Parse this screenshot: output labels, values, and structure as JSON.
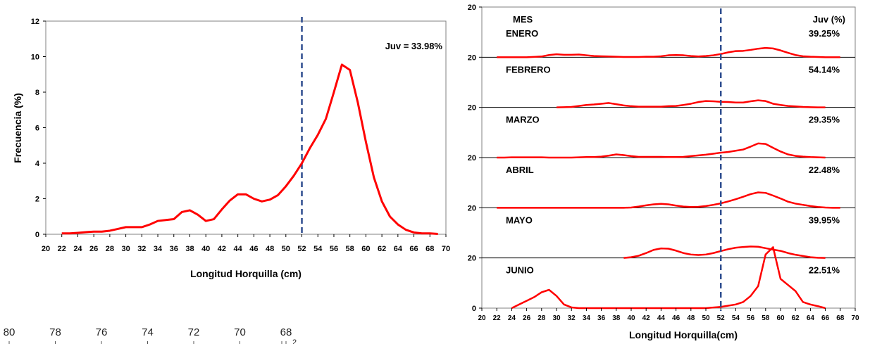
{
  "colors": {
    "curve": "#ff0000",
    "marker": "#2e4d8f",
    "axis": "#000000"
  },
  "left_chart": {
    "chart_data": {
      "type": "line",
      "ylabel": "Frecuencia (%)",
      "xlabel": "Longitud Horquilla (cm)",
      "annotation": "Juv = 33.98%",
      "marker_x": 52,
      "xlim": [
        20,
        70
      ],
      "ylim": [
        0,
        12
      ],
      "x_ticks": [
        20,
        22,
        24,
        26,
        28,
        30,
        32,
        34,
        36,
        38,
        40,
        42,
        44,
        46,
        48,
        50,
        52,
        54,
        56,
        58,
        60,
        62,
        64,
        66,
        68,
        70
      ],
      "y_ticks": [
        0,
        2,
        4,
        6,
        8,
        10,
        12
      ],
      "series": [
        {
          "x": [
            22,
            23,
            24,
            25,
            26,
            27,
            28,
            29,
            30,
            31,
            32,
            33,
            34,
            35,
            36,
            37,
            38,
            39,
            40,
            41,
            42,
            43,
            44,
            45,
            46,
            47,
            48,
            49,
            50,
            51,
            52,
            53,
            54,
            55,
            56,
            57,
            58,
            59,
            60,
            61,
            62,
            63,
            64,
            65,
            66,
            67,
            68,
            69
          ],
          "values": [
            0.05,
            0.05,
            0.08,
            0.12,
            0.15,
            0.15,
            0.2,
            0.3,
            0.4,
            0.4,
            0.4,
            0.55,
            0.75,
            0.8,
            0.85,
            1.25,
            1.35,
            1.1,
            0.75,
            0.85,
            1.4,
            1.9,
            2.25,
            2.25,
            2.0,
            1.85,
            1.95,
            2.2,
            2.7,
            3.3,
            4.0,
            4.85,
            5.6,
            6.5,
            8.0,
            9.55,
            9.25,
            7.4,
            5.2,
            3.2,
            1.85,
            1.0,
            0.55,
            0.25,
            0.1,
            0.05,
            0.05,
            0.02
          ]
        }
      ]
    }
  },
  "right_chart": {
    "chart_data": {
      "type": "line",
      "xlabel": "Longitud Horquilla(cm)",
      "header_left": "MES",
      "header_right": "Juv (%)",
      "marker_x": 52,
      "xlim": [
        20,
        70
      ],
      "ylim": [
        0,
        20
      ],
      "y_tick_labels": [
        "20",
        "20",
        "20",
        "20",
        "20",
        "20",
        "0"
      ],
      "x_ticks": [
        20,
        22,
        24,
        26,
        28,
        30,
        32,
        34,
        36,
        38,
        40,
        42,
        44,
        46,
        48,
        50,
        52,
        54,
        56,
        58,
        60,
        62,
        64,
        66,
        68,
        70
      ],
      "series": [
        {
          "name": "ENERO",
          "juv": "39.25%",
          "x": [
            22,
            24,
            26,
            28,
            29,
            30,
            31,
            32,
            33,
            34,
            35,
            36,
            37,
            38,
            39,
            40,
            41,
            42,
            43,
            44,
            45,
            46,
            47,
            48,
            49,
            50,
            51,
            52,
            53,
            54,
            55,
            56,
            57,
            58,
            59,
            60,
            61,
            62,
            63,
            64,
            65,
            66,
            67,
            68
          ],
          "y": [
            0,
            0,
            0,
            0.3,
            0.9,
            1.2,
            1.0,
            1.0,
            1.1,
            0.8,
            0.5,
            0.4,
            0.3,
            0.2,
            0.1,
            0.1,
            0.1,
            0.2,
            0.2,
            0.4,
            0.8,
            0.9,
            0.8,
            0.5,
            0.3,
            0.5,
            0.8,
            1.3,
            2.0,
            2.5,
            2.6,
            3.0,
            3.5,
            3.8,
            3.6,
            2.8,
            1.8,
            0.9,
            0.4,
            0.2,
            0.1,
            0,
            0,
            0
          ]
        },
        {
          "name": "FEBRERO",
          "juv": "54.14%",
          "x": [
            30,
            31,
            32,
            33,
            34,
            35,
            36,
            37,
            38,
            39,
            40,
            41,
            42,
            43,
            44,
            45,
            46,
            47,
            48,
            49,
            50,
            51,
            52,
            53,
            54,
            55,
            56,
            57,
            58,
            59,
            60,
            61,
            62,
            63,
            64,
            65,
            66
          ],
          "y": [
            0,
            0.1,
            0.2,
            0.6,
            1.0,
            1.2,
            1.5,
            1.8,
            1.3,
            0.8,
            0.5,
            0.3,
            0.3,
            0.3,
            0.3,
            0.5,
            0.6,
            1.0,
            1.5,
            2.2,
            2.6,
            2.5,
            2.3,
            2.2,
            2.0,
            2.0,
            2.5,
            2.9,
            2.6,
            1.5,
            1.0,
            0.6,
            0.4,
            0.2,
            0.1,
            0,
            0
          ]
        },
        {
          "name": "MARZO",
          "juv": "29.35%",
          "x": [
            22,
            23,
            24,
            25,
            26,
            27,
            28,
            29,
            30,
            31,
            32,
            33,
            34,
            35,
            36,
            37,
            38,
            39,
            40,
            41,
            42,
            43,
            44,
            45,
            46,
            47,
            48,
            49,
            50,
            51,
            52,
            53,
            54,
            55,
            56,
            57,
            58,
            59,
            60,
            61,
            62,
            63,
            64,
            65,
            66
          ],
          "y": [
            0,
            0,
            0.1,
            0.1,
            0.1,
            0.1,
            0.1,
            0,
            0,
            0,
            0,
            0.1,
            0.2,
            0.2,
            0.4,
            0.8,
            1.3,
            1.0,
            0.6,
            0.3,
            0.3,
            0.3,
            0.3,
            0.2,
            0.2,
            0.3,
            0.6,
            0.9,
            1.2,
            1.6,
            2.0,
            2.3,
            2.8,
            3.3,
            4.5,
            5.8,
            5.6,
            4.0,
            2.5,
            1.3,
            0.7,
            0.4,
            0.2,
            0.1,
            0
          ]
        },
        {
          "name": "ABRIL",
          "juv": "22.48%",
          "x": [
            22,
            30,
            38,
            39,
            40,
            41,
            42,
            43,
            44,
            45,
            46,
            47,
            48,
            49,
            50,
            51,
            52,
            53,
            54,
            55,
            56,
            57,
            58,
            59,
            60,
            61,
            62,
            63,
            64,
            65,
            66,
            67,
            68
          ],
          "y": [
            0,
            0,
            0,
            0,
            0.1,
            0.5,
            1.0,
            1.4,
            1.6,
            1.4,
            0.9,
            0.5,
            0.3,
            0.4,
            0.7,
            1.2,
            1.8,
            2.6,
            3.5,
            4.5,
            5.6,
            6.3,
            6.1,
            5.0,
            3.8,
            2.5,
            1.7,
            1.2,
            0.7,
            0.3,
            0.1,
            0,
            0
          ]
        },
        {
          "name": "MAYO",
          "juv": "39.95%",
          "x": [
            39,
            40,
            41,
            42,
            43,
            44,
            45,
            46,
            47,
            48,
            49,
            50,
            51,
            52,
            53,
            54,
            55,
            56,
            57,
            58,
            59,
            60,
            61,
            62,
            63,
            64,
            65,
            66
          ],
          "y": [
            0,
            0.3,
            0.9,
            2.0,
            3.3,
            3.9,
            3.8,
            3.0,
            2.0,
            1.4,
            1.2,
            1.4,
            2.0,
            2.8,
            3.6,
            4.2,
            4.5,
            4.7,
            4.6,
            4.0,
            3.4,
            2.9,
            2.0,
            1.3,
            0.8,
            0.3,
            0.1,
            0
          ]
        },
        {
          "name": "JUNIO",
          "juv": "22.51%",
          "x": [
            24,
            25,
            26,
            27,
            28,
            29,
            30,
            31,
            32,
            33,
            34,
            36,
            40,
            44,
            48,
            50,
            52,
            54,
            55,
            56,
            57,
            58,
            59,
            60,
            61,
            62,
            63,
            64,
            65,
            66
          ],
          "y": [
            0,
            1.5,
            3.0,
            4.5,
            6.5,
            7.5,
            5.0,
            1.5,
            0.3,
            0,
            0,
            0,
            0,
            0,
            0,
            0,
            0.5,
            1.5,
            2.5,
            5.0,
            9.0,
            22.0,
            25.0,
            12.0,
            9.5,
            7.0,
            2.5,
            1.5,
            0.8,
            0
          ]
        }
      ]
    }
  },
  "stray_axis": {
    "labels": [
      "80",
      "78",
      "76",
      "74",
      "72",
      "70",
      "68"
    ],
    "trailing_label": "2"
  }
}
